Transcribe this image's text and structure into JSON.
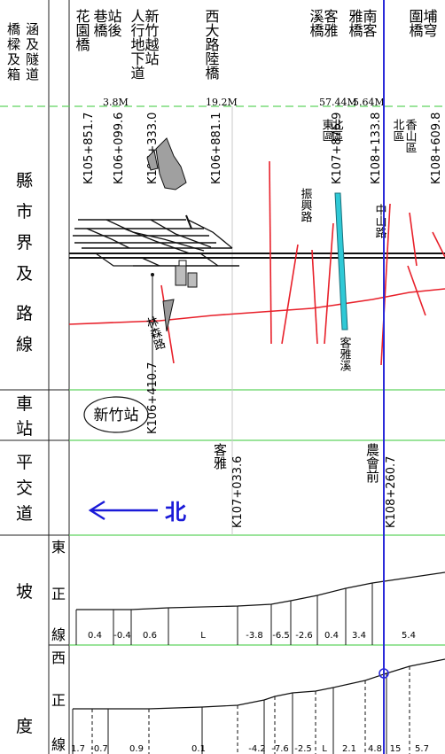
{
  "row_headers": {
    "bridges": "橋涵橋樑及隧道箱道",
    "boundary": "縣市界及路線",
    "station": "車站",
    "crossing": "平交道",
    "gradient": "坡度",
    "east_main": "東正線",
    "west_main": "西正線"
  },
  "bridges": [
    {
      "name": "花園橋",
      "chainage": "K105+851.7"
    },
    {
      "name": "站後巷橋",
      "chainage": "K106+099.6",
      "span": "3.8M"
    },
    {
      "name": "新竹越站人行地下道",
      "chainage": "K106+333.0"
    },
    {
      "name": "西大路陸橋",
      "chainage": "K106+881.1",
      "span": "19.2M"
    },
    {
      "name": "客雅溪橋",
      "chainage": "K107+876.9",
      "span": "57.44M"
    },
    {
      "name": "南客雅橋",
      "chainage": "K108+133.8",
      "span": "5.64M"
    },
    {
      "name": "埔穹圍橋",
      "chainage": "K108+609.8"
    }
  ],
  "district_labels": [
    "東區",
    "北區",
    "北區",
    "香山區"
  ],
  "road_labels": [
    "振興路",
    "中山路",
    "林森路"
  ],
  "river_label": "客雅溪",
  "station": {
    "name": "新竹站",
    "chainage": "K106+410.7"
  },
  "crossings": [
    {
      "name": "客雅",
      "chainage": "K107+033.6"
    },
    {
      "name": "農會前",
      "chainage": "K108+260.7"
    }
  ],
  "north_arrow": {
    "label": "北",
    "direction": "left",
    "color": "#1a1ad8"
  },
  "gradients": {
    "east": [
      "0.4",
      "-0.4",
      "0.6",
      "L",
      "-3.8",
      "-6.5",
      "-2.6",
      "0.4",
      "3.4",
      "5.4"
    ],
    "west": [
      "1.7",
      "-0.7",
      "0.9",
      "0.1",
      "-4.2",
      "-7.6",
      "-2.5",
      "L",
      "2.1",
      "4.8",
      "15",
      "5.7"
    ]
  },
  "colors": {
    "grid": "#5fd35f",
    "current": "#2b2bd9",
    "route": "#e8202a",
    "river": "#2fc9d6"
  }
}
